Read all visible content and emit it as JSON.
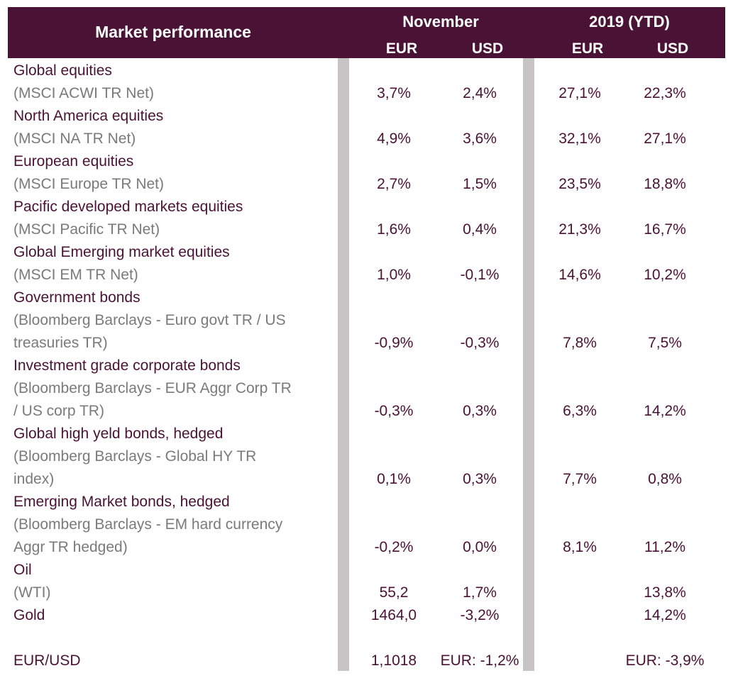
{
  "header": {
    "title": "Market performance",
    "november": "November",
    "ytd": "2019 (YTD)",
    "nov_eur": "EUR",
    "nov_usd": "USD",
    "ytd_eur": "EUR",
    "ytd_usd": "USD"
  },
  "rows": {
    "global_eq": {
      "name": "Global equities",
      "sub": "(MSCI ACWI TR Net)",
      "nov_eur": "3,7%",
      "nov_usd": "2,4%",
      "ytd_eur": "27,1%",
      "ytd_usd": "22,3%"
    },
    "na_eq": {
      "name": "North America equities",
      "sub": "(MSCI NA TR Net)",
      "nov_eur": "4,9%",
      "nov_usd": "3,6%",
      "ytd_eur": "32,1%",
      "ytd_usd": "27,1%"
    },
    "eu_eq": {
      "name": "European equities",
      "sub": "(MSCI Europe TR Net)",
      "nov_eur": "2,7%",
      "nov_usd": "1,5%",
      "ytd_eur": "23,5%",
      "ytd_usd": "18,8%"
    },
    "pac_eq": {
      "name": "Pacific developed markets equities",
      "sub": "(MSCI Pacific TR Net)",
      "nov_eur": "1,6%",
      "nov_usd": "0,4%",
      "ytd_eur": "21,3%",
      "ytd_usd": "16,7%"
    },
    "em_eq": {
      "name": "Global Emerging market equities",
      "sub": "(MSCI EM TR Net)",
      "nov_eur": "1,0%",
      "nov_usd": "-0,1%",
      "ytd_eur": "14,6%",
      "ytd_usd": "10,2%"
    },
    "gov": {
      "name": "Government bonds",
      "sub1": "(Bloomberg Barclays - Euro govt TR / US",
      "sub2": "treasuries TR)",
      "nov_eur": "-0,9%",
      "nov_usd": "-0,3%",
      "ytd_eur": "7,8%",
      "ytd_usd": "7,5%"
    },
    "ig": {
      "name": "Investment grade corporate bonds",
      "sub1": "(Bloomberg Barclays - EUR Aggr Corp TR",
      "sub2": "/ US corp TR)",
      "nov_eur": "-0,3%",
      "nov_usd": "0,3%",
      "ytd_eur": "6,3%",
      "ytd_usd": "14,2%"
    },
    "hy": {
      "name": "Global high yeld bonds, hedged",
      "sub1": "(Bloomberg Barclays - Global HY TR",
      "sub2": "index)",
      "nov_eur": "0,1%",
      "nov_usd": "0,3%",
      "ytd_eur": "7,7%",
      "ytd_usd": "0,8%"
    },
    "emb": {
      "name": "Emerging Market bonds, hedged",
      "sub1": "(Bloomberg Barclays - EM hard currency",
      "sub2": "Aggr TR hedged)",
      "nov_eur": "-0,2%",
      "nov_usd": "0,0%",
      "ytd_eur": "8,1%",
      "ytd_usd": "11,2%"
    },
    "oil": {
      "name": "Oil",
      "sub": "(WTI)",
      "nov_eur": "55,2",
      "nov_usd": "1,7%",
      "ytd_usd": "13,8%"
    },
    "gold": {
      "name": "Gold",
      "nov_eur": "1464,0",
      "nov_usd": "-3,2%",
      "ytd_usd": "14,2%"
    },
    "fx": {
      "name": "EUR/USD",
      "nov_eur": "1,1018",
      "nov_usd": "EUR: -1,2%",
      "ytd": "EUR: -3,9%"
    }
  }
}
